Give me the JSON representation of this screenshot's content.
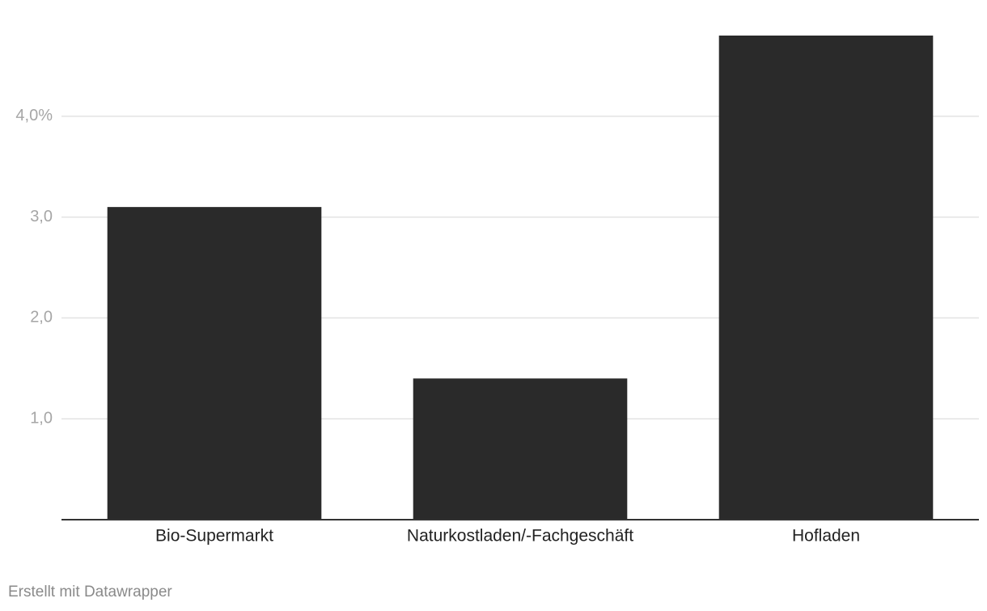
{
  "chart_data": {
    "type": "bar",
    "categories": [
      "Bio-Supermarkt",
      "Naturkostladen/-Fachgeschäft",
      "Hofladen"
    ],
    "values": [
      3.1,
      1.4,
      4.8
    ],
    "color": "#2a2a2a",
    "ylim": [
      0,
      4.8
    ],
    "yticks": [
      {
        "value": 1,
        "label": "1,0"
      },
      {
        "value": 2,
        "label": "2,0"
      },
      {
        "value": 3,
        "label": "3,0"
      },
      {
        "value": 4,
        "label": "4,0%"
      }
    ],
    "grid": true,
    "footer": "Erstellt mit Datawrapper"
  }
}
